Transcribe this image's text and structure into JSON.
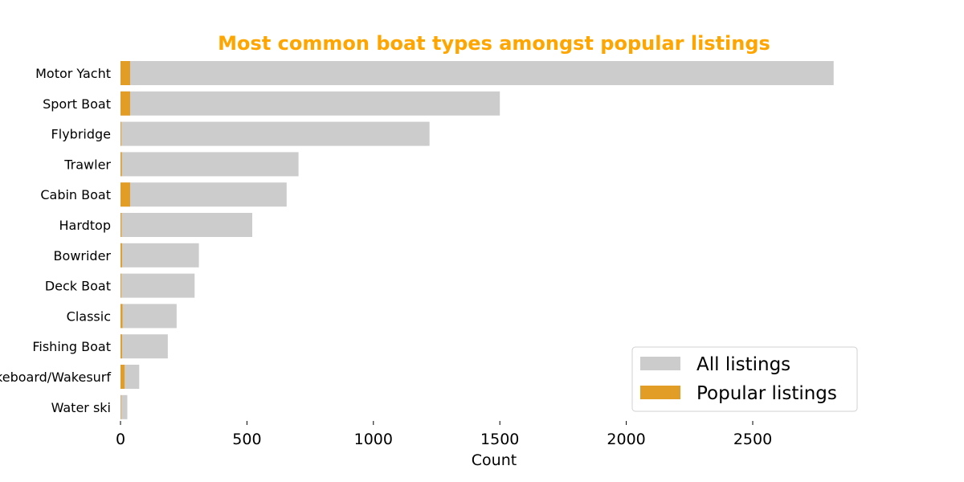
{
  "chart_data": {
    "type": "bar",
    "orientation": "horizontal",
    "title": "Most common boat types amongst popular listings",
    "xlabel": "Count",
    "ylabel": "",
    "xlim": [
      0,
      3000
    ],
    "xticks": [
      0,
      500,
      1000,
      1500,
      2000,
      2500
    ],
    "grid": false,
    "legend_position": "lower-right",
    "categories": [
      "Motor Yacht",
      "Sport Boat",
      "Flybridge",
      "Trawler",
      "Cabin Boat",
      "Hardtop",
      "Bowrider",
      "Deck Boat",
      "Classic",
      "Fishing Boat",
      "Wakeboard/Wakesurf",
      "Water ski"
    ],
    "series": [
      {
        "name": "All listings",
        "color": "#cccccc",
        "values": [
          2820,
          1500,
          1222,
          704,
          657,
          521,
          310,
          293,
          222,
          187,
          74,
          27
        ]
      },
      {
        "name": "Popular listings",
        "color": "#e29d26",
        "values": [
          38,
          38,
          3,
          5,
          38,
          4,
          6,
          3,
          8,
          6,
          16,
          2
        ]
      }
    ],
    "colors": {
      "title": "#ffa500"
    }
  }
}
